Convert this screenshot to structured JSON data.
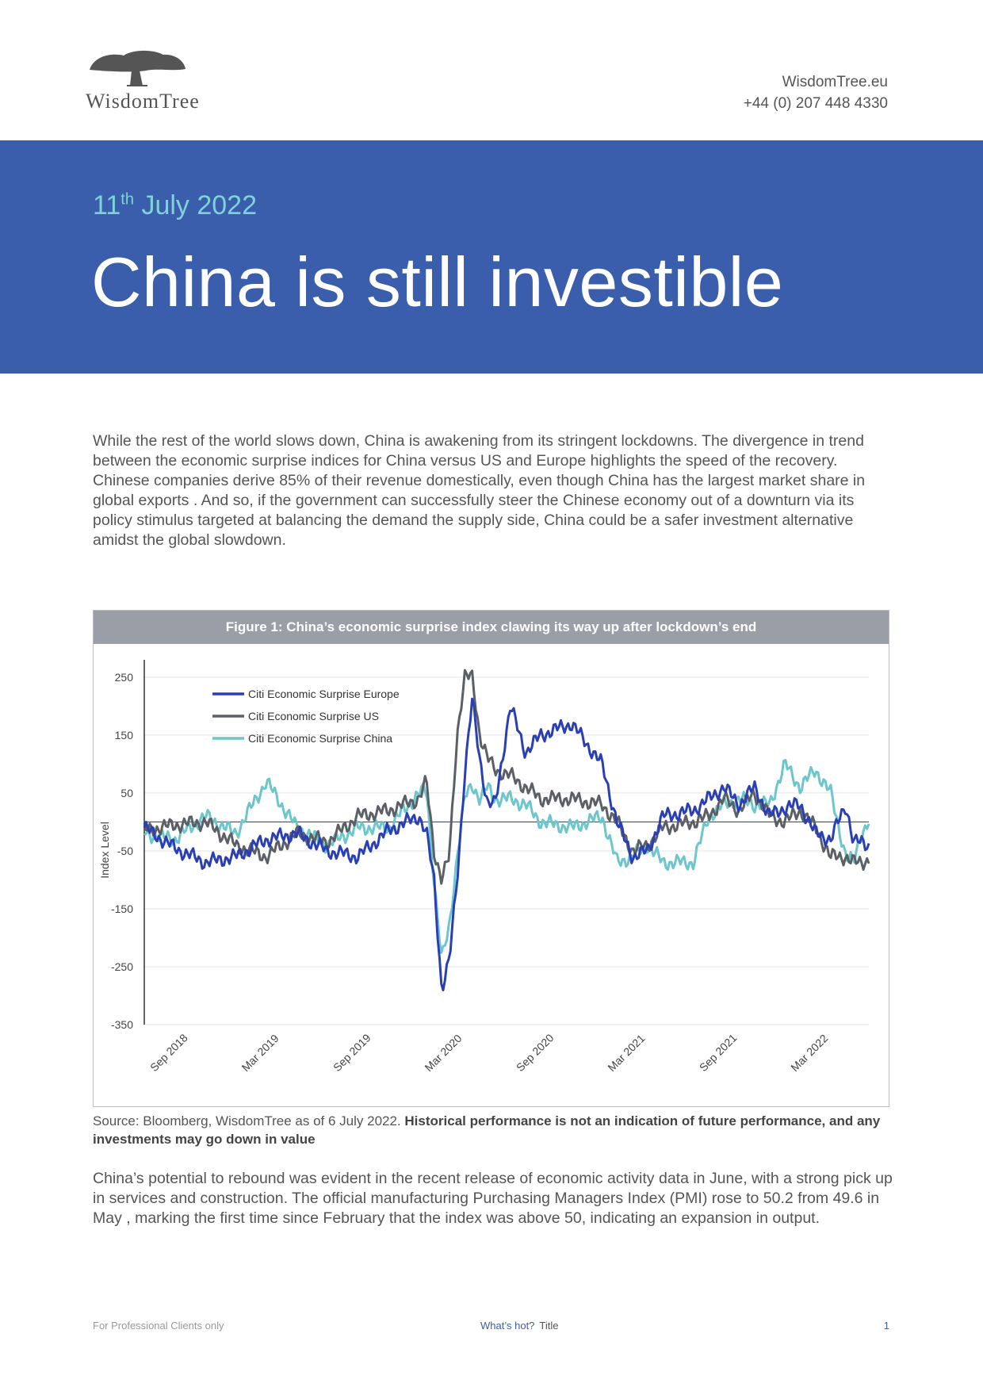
{
  "header": {
    "logo_text": "WisdomTree",
    "website": "WisdomTree.eu",
    "phone": "+44 (0) 207 448 4330"
  },
  "banner": {
    "date_day": "11",
    "date_suffix": "th",
    "date_rest": "July 2022",
    "title": "China is still investible"
  },
  "body": {
    "paragraph1": "While the rest of the world slows down, China is awakening from its stringent lockdowns. The divergence in trend between the economic surprise indices for China versus US and Europe highlights the speed of the recovery. Chinese companies derive 85% of their revenue domestically, even though China has the largest market share in global exports . And so, if the government can successfully steer the Chinese economy out of a downturn via its policy stimulus targeted at balancing the demand the supply side, China could be a safer investment alternative amidst the global slowdown.",
    "paragraph2": "China’s potential to rebound was evident in the recent release of economic activity data in June, with a strong pick up in services and construction. The official manufacturing Purchasing Managers Index (PMI) rose to 50.2 from 49.6 in May , marking the first time since February that the index was above 50, indicating an expansion in output."
  },
  "figure": {
    "caption": "Figure 1: China’s economic surprise index clawing its way up after lockdown’s end",
    "source_plain": "Source: Bloomberg, WisdomTree as of 6 July 2022.",
    "source_bold": "Historical performance is not an indication of future performance, and any investments may go down in value"
  },
  "chart_data": {
    "type": "line",
    "title": "Figure 1: China’s economic surprise index clawing its way up after lockdown’s end",
    "xlabel": "",
    "ylabel": "Index Level",
    "ylim": [
      -350,
      280
    ],
    "yticks": [
      250,
      150,
      50,
      -50,
      -150,
      -250,
      -350
    ],
    "x_tick_labels": [
      "Sep 2018",
      "Mar 2019",
      "Sep 2019",
      "Mar 2020",
      "Sep 2020",
      "Mar 2021",
      "Sep 2021",
      "Mar 2022"
    ],
    "x_range": [
      "2018-08",
      "2022-07"
    ],
    "legend_position": "top-left",
    "colors": {
      "europe": "#2b3fb5",
      "us": "#5b5f66",
      "china": "#6cc6cc"
    },
    "x_months": [
      0,
      2,
      4,
      6,
      8,
      10,
      12,
      14,
      16,
      18,
      18.5,
      19,
      19.5,
      20,
      20.5,
      21,
      21.5,
      22,
      22.5,
      23,
      24,
      25,
      26,
      28,
      30,
      31,
      32,
      33,
      34,
      36,
      37,
      38,
      39,
      40,
      41,
      42,
      43,
      44,
      45,
      46,
      46.5,
      47,
      47.5
    ],
    "series": [
      {
        "name": "Citi Economic Surprise Europe",
        "values": [
          -10,
          -45,
          -70,
          -60,
          -30,
          -20,
          -50,
          -60,
          -15,
          10,
          -20,
          -100,
          -290,
          -240,
          -100,
          80,
          210,
          110,
          30,
          30,
          200,
          120,
          150,
          170,
          100,
          0,
          -60,
          -50,
          10,
          20,
          40,
          60,
          30,
          60,
          10,
          25,
          30,
          -20,
          -30,
          30,
          -35,
          -35,
          -40
        ]
      },
      {
        "name": "Citi Economic Surprise US",
        "values": [
          -15,
          -5,
          0,
          -40,
          -60,
          -20,
          -35,
          10,
          20,
          40,
          70,
          -50,
          -100,
          -60,
          150,
          250,
          250,
          150,
          110,
          90,
          80,
          60,
          40,
          40,
          30,
          0,
          -50,
          -40,
          -10,
          0,
          10,
          40,
          20,
          50,
          10,
          0,
          20,
          -10,
          -60,
          -60,
          -70,
          -70,
          -65
        ]
      },
      {
        "name": "Citi Economic Surprise China",
        "values": [
          -20,
          -30,
          10,
          -20,
          70,
          -10,
          -40,
          -10,
          -10,
          50,
          55,
          -100,
          -240,
          -180,
          -60,
          40,
          65,
          40,
          60,
          40,
          40,
          30,
          0,
          -10,
          10,
          -70,
          -60,
          -40,
          -70,
          -70,
          10,
          30,
          40,
          30,
          30,
          100,
          60,
          90,
          50,
          -60,
          -70,
          -20,
          0
        ]
      }
    ]
  },
  "footer": {
    "left": "For Professional Clients only",
    "mid_link": "What’s hot?",
    "mid_title": "Title",
    "page": "1"
  }
}
